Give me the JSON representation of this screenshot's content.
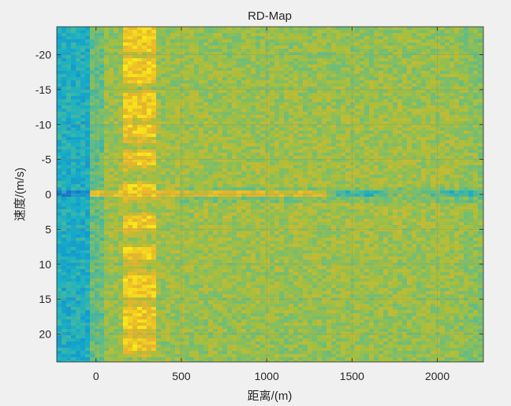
{
  "chart_data": {
    "type": "heatmap",
    "title": "RD-Map",
    "xlabel": "距离/(m)",
    "ylabel": "速度/(m/s)",
    "xlim": [
      -230,
      2270
    ],
    "ylim": [
      -24,
      24
    ],
    "y_reversed": true,
    "x_ticks": [
      0,
      500,
      1000,
      1500,
      2000
    ],
    "y_ticks": [
      -20,
      -15,
      -10,
      -5,
      0,
      5,
      10,
      15,
      20
    ],
    "grid": true,
    "colormap": "parula",
    "colormap_colors": [
      "#3e26a8",
      "#1488d4",
      "#17b0c6",
      "#5ebc8a",
      "#a7bf3c",
      "#e8b52c",
      "#f9ea19"
    ],
    "features": {
      "low_region_x_range": [
        -230,
        -40
      ],
      "strong_target_x_range": [
        160,
        360
      ],
      "strong_target_y_bands": [
        -23,
        -21.5,
        -18.5,
        -17,
        -13.5,
        -12,
        -9,
        -5,
        -0.5,
        4,
        8.5,
        12.5,
        14,
        17,
        18.5,
        21.5
      ],
      "zero_doppler_clutter_velocity": 0,
      "zero_doppler_clutter_x_range": [
        -230,
        2270
      ]
    }
  }
}
